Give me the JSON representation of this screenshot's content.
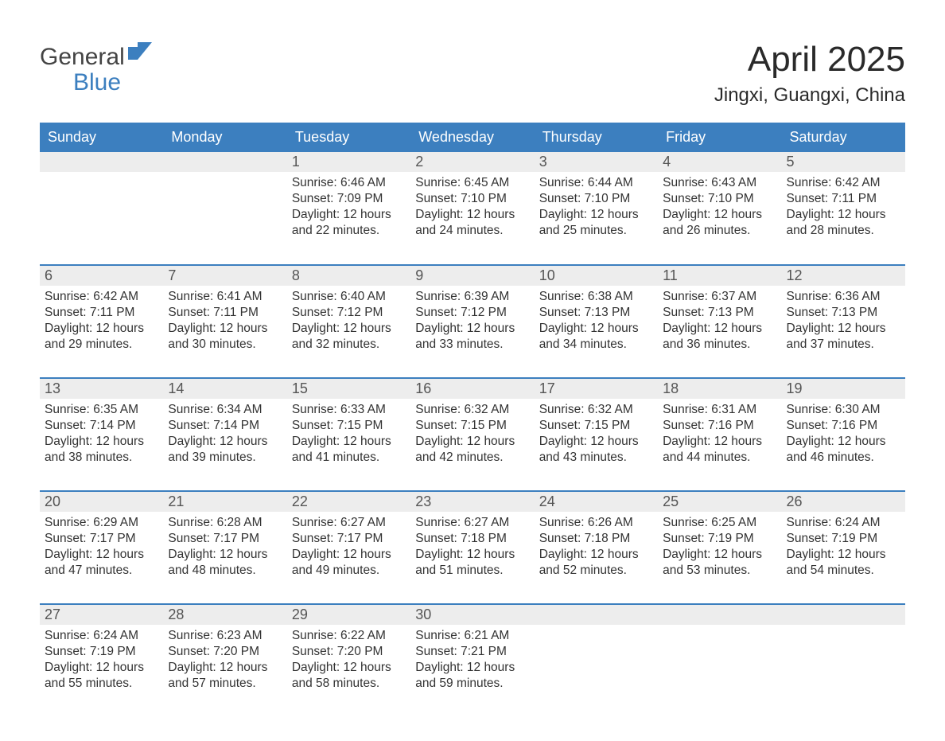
{
  "logo": {
    "text_top": "General",
    "text_bottom": "Blue",
    "icon_color": "#3c7fbf"
  },
  "title": "April 2025",
  "location": "Jingxi, Guangxi, China",
  "colors": {
    "header_bg": "#3c7fbf",
    "header_text": "#ffffff",
    "daynum_bg": "#ededed",
    "row_border": "#3c7fbf",
    "body_text": "#333333",
    "title_text": "#2a2a2a"
  },
  "weekdays": [
    "Sunday",
    "Monday",
    "Tuesday",
    "Wednesday",
    "Thursday",
    "Friday",
    "Saturday"
  ],
  "labels": {
    "sunrise": "Sunrise:",
    "sunset": "Sunset:",
    "daylight": "Daylight:"
  },
  "weeks": [
    [
      {
        "empty": true
      },
      {
        "empty": true
      },
      {
        "day": "1",
        "sunrise": "6:46 AM",
        "sunset": "7:09 PM",
        "daylight": "12 hours and 22 minutes."
      },
      {
        "day": "2",
        "sunrise": "6:45 AM",
        "sunset": "7:10 PM",
        "daylight": "12 hours and 24 minutes."
      },
      {
        "day": "3",
        "sunrise": "6:44 AM",
        "sunset": "7:10 PM",
        "daylight": "12 hours and 25 minutes."
      },
      {
        "day": "4",
        "sunrise": "6:43 AM",
        "sunset": "7:10 PM",
        "daylight": "12 hours and 26 minutes."
      },
      {
        "day": "5",
        "sunrise": "6:42 AM",
        "sunset": "7:11 PM",
        "daylight": "12 hours and 28 minutes."
      }
    ],
    [
      {
        "day": "6",
        "sunrise": "6:42 AM",
        "sunset": "7:11 PM",
        "daylight": "12 hours and 29 minutes."
      },
      {
        "day": "7",
        "sunrise": "6:41 AM",
        "sunset": "7:11 PM",
        "daylight": "12 hours and 30 minutes."
      },
      {
        "day": "8",
        "sunrise": "6:40 AM",
        "sunset": "7:12 PM",
        "daylight": "12 hours and 32 minutes."
      },
      {
        "day": "9",
        "sunrise": "6:39 AM",
        "sunset": "7:12 PM",
        "daylight": "12 hours and 33 minutes."
      },
      {
        "day": "10",
        "sunrise": "6:38 AM",
        "sunset": "7:13 PM",
        "daylight": "12 hours and 34 minutes."
      },
      {
        "day": "11",
        "sunrise": "6:37 AM",
        "sunset": "7:13 PM",
        "daylight": "12 hours and 36 minutes."
      },
      {
        "day": "12",
        "sunrise": "6:36 AM",
        "sunset": "7:13 PM",
        "daylight": "12 hours and 37 minutes."
      }
    ],
    [
      {
        "day": "13",
        "sunrise": "6:35 AM",
        "sunset": "7:14 PM",
        "daylight": "12 hours and 38 minutes."
      },
      {
        "day": "14",
        "sunrise": "6:34 AM",
        "sunset": "7:14 PM",
        "daylight": "12 hours and 39 minutes."
      },
      {
        "day": "15",
        "sunrise": "6:33 AM",
        "sunset": "7:15 PM",
        "daylight": "12 hours and 41 minutes."
      },
      {
        "day": "16",
        "sunrise": "6:32 AM",
        "sunset": "7:15 PM",
        "daylight": "12 hours and 42 minutes."
      },
      {
        "day": "17",
        "sunrise": "6:32 AM",
        "sunset": "7:15 PM",
        "daylight": "12 hours and 43 minutes."
      },
      {
        "day": "18",
        "sunrise": "6:31 AM",
        "sunset": "7:16 PM",
        "daylight": "12 hours and 44 minutes."
      },
      {
        "day": "19",
        "sunrise": "6:30 AM",
        "sunset": "7:16 PM",
        "daylight": "12 hours and 46 minutes."
      }
    ],
    [
      {
        "day": "20",
        "sunrise": "6:29 AM",
        "sunset": "7:17 PM",
        "daylight": "12 hours and 47 minutes."
      },
      {
        "day": "21",
        "sunrise": "6:28 AM",
        "sunset": "7:17 PM",
        "daylight": "12 hours and 48 minutes."
      },
      {
        "day": "22",
        "sunrise": "6:27 AM",
        "sunset": "7:17 PM",
        "daylight": "12 hours and 49 minutes."
      },
      {
        "day": "23",
        "sunrise": "6:27 AM",
        "sunset": "7:18 PM",
        "daylight": "12 hours and 51 minutes."
      },
      {
        "day": "24",
        "sunrise": "6:26 AM",
        "sunset": "7:18 PM",
        "daylight": "12 hours and 52 minutes."
      },
      {
        "day": "25",
        "sunrise": "6:25 AM",
        "sunset": "7:19 PM",
        "daylight": "12 hours and 53 minutes."
      },
      {
        "day": "26",
        "sunrise": "6:24 AM",
        "sunset": "7:19 PM",
        "daylight": "12 hours and 54 minutes."
      }
    ],
    [
      {
        "day": "27",
        "sunrise": "6:24 AM",
        "sunset": "7:19 PM",
        "daylight": "12 hours and 55 minutes."
      },
      {
        "day": "28",
        "sunrise": "6:23 AM",
        "sunset": "7:20 PM",
        "daylight": "12 hours and 57 minutes."
      },
      {
        "day": "29",
        "sunrise": "6:22 AM",
        "sunset": "7:20 PM",
        "daylight": "12 hours and 58 minutes."
      },
      {
        "day": "30",
        "sunrise": "6:21 AM",
        "sunset": "7:21 PM",
        "daylight": "12 hours and 59 minutes."
      },
      {
        "empty": true
      },
      {
        "empty": true
      },
      {
        "empty": true
      }
    ]
  ]
}
